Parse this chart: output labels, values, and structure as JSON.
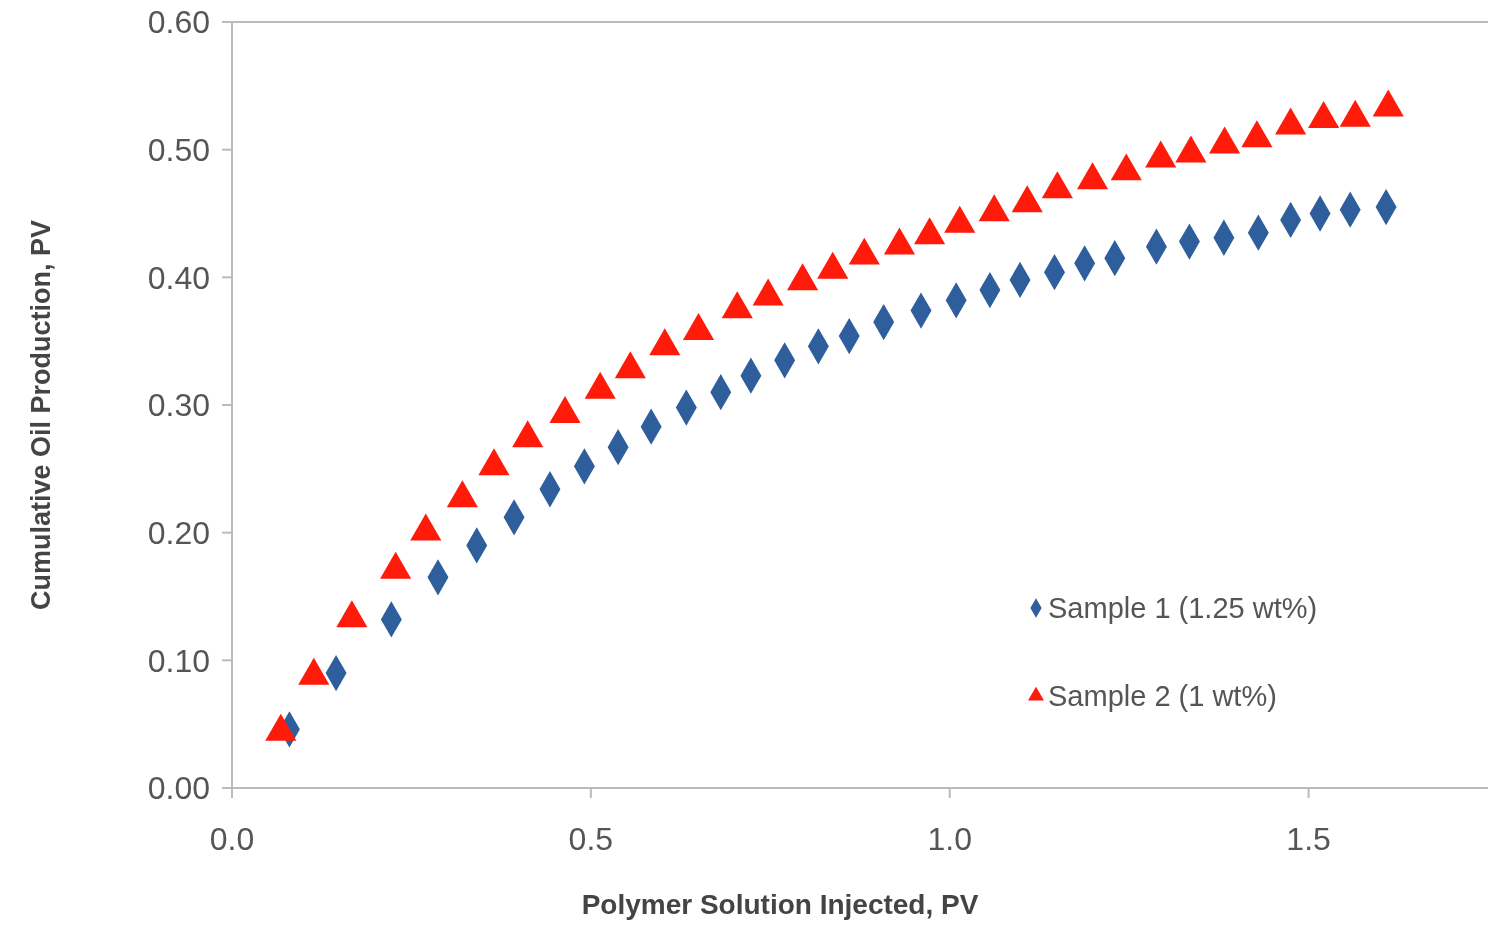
{
  "chart_data": {
    "type": "scatter",
    "xlabel": "Polymer Solution Injected, PV",
    "ylabel": "Cumulative Oil Production, PV",
    "xlim": [
      0,
      1.75
    ],
    "ylim": [
      0,
      0.6
    ],
    "xticks": [
      {
        "value": 0,
        "label": "0.0"
      },
      0.5,
      {
        "value": 1,
        "label": "1.0"
      },
      1.5
    ],
    "yticks": [
      {
        "value": 0,
        "label": "0.00"
      },
      {
        "value": 0.1,
        "label": "0.10"
      },
      {
        "value": 0.2,
        "label": "0.20"
      },
      {
        "value": 0.3,
        "label": "0.30"
      },
      {
        "value": 0.4,
        "label": "0.40"
      },
      {
        "value": 0.5,
        "label": "0.50"
      },
      {
        "value": 0.6,
        "label": "0.60"
      }
    ],
    "grid": false,
    "legend": "bottom right",
    "series": [
      {
        "name": "Sample 1 (1.25 wt%)",
        "color": "#2e5e9b",
        "marker": "diamond",
        "x": [
          0.08,
          0.145,
          0.222,
          0.287,
          0.341,
          0.393,
          0.443,
          0.491,
          0.538,
          0.584,
          0.633,
          0.681,
          0.723,
          0.77,
          0.817,
          0.86,
          0.908,
          0.96,
          1.009,
          1.056,
          1.098,
          1.146,
          1.188,
          1.23,
          1.288,
          1.334,
          1.382,
          1.43,
          1.475,
          1.516,
          1.558,
          1.608
        ],
        "values": [
          0.046,
          0.09,
          0.132,
          0.165,
          0.19,
          0.212,
          0.234,
          0.252,
          0.267,
          0.283,
          0.298,
          0.31,
          0.323,
          0.335,
          0.346,
          0.354,
          0.365,
          0.374,
          0.382,
          0.39,
          0.398,
          0.404,
          0.411,
          0.415,
          0.424,
          0.428,
          0.431,
          0.435,
          0.445,
          0.45,
          0.453,
          0.455
        ]
      },
      {
        "name": "Sample 2 (1 wt%)",
        "color": "#ff1a0a",
        "marker": "triangle",
        "x": [
          0.068,
          0.114,
          0.167,
          0.228,
          0.27,
          0.321,
          0.365,
          0.412,
          0.464,
          0.513,
          0.555,
          0.603,
          0.65,
          0.704,
          0.747,
          0.795,
          0.837,
          0.881,
          0.93,
          0.972,
          1.014,
          1.062,
          1.108,
          1.15,
          1.199,
          1.246,
          1.294,
          1.336,
          1.383,
          1.428,
          1.475,
          1.521,
          1.565,
          1.611
        ],
        "values": [
          0.044,
          0.088,
          0.133,
          0.171,
          0.201,
          0.227,
          0.252,
          0.274,
          0.293,
          0.312,
          0.328,
          0.346,
          0.358,
          0.375,
          0.385,
          0.397,
          0.406,
          0.417,
          0.425,
          0.433,
          0.442,
          0.451,
          0.458,
          0.469,
          0.476,
          0.483,
          0.493,
          0.497,
          0.504,
          0.509,
          0.519,
          0.524,
          0.525,
          0.533
        ]
      }
    ]
  }
}
